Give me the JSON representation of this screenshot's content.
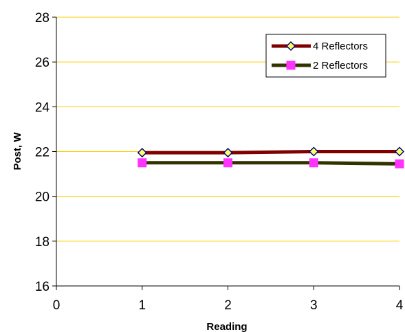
{
  "chart_data": {
    "type": "line",
    "xlabel": "Reading",
    "ylabel": "Post, W",
    "xlim": [
      0,
      4
    ],
    "ylim": [
      16,
      28
    ],
    "x_ticks": [
      "0",
      "1",
      "2",
      "3",
      "4"
    ],
    "y_ticks": [
      "16",
      "18",
      "20",
      "22",
      "24",
      "26",
      "28"
    ],
    "grid": "horizontal",
    "legend_position": "top-right",
    "x": [
      1,
      2,
      3,
      4
    ],
    "series": [
      {
        "name": "4 Reflectors",
        "values": [
          21.95,
          21.95,
          22.0,
          22.0
        ],
        "line_color": "#800000",
        "marker": "diamond",
        "marker_color": "#ffff66"
      },
      {
        "name": "2 Reflectors",
        "values": [
          21.5,
          21.5,
          21.5,
          21.45
        ],
        "line_color": "#333300",
        "marker": "square",
        "marker_color": "#ff33ff"
      }
    ],
    "gridline_color": "#ffcc00"
  }
}
